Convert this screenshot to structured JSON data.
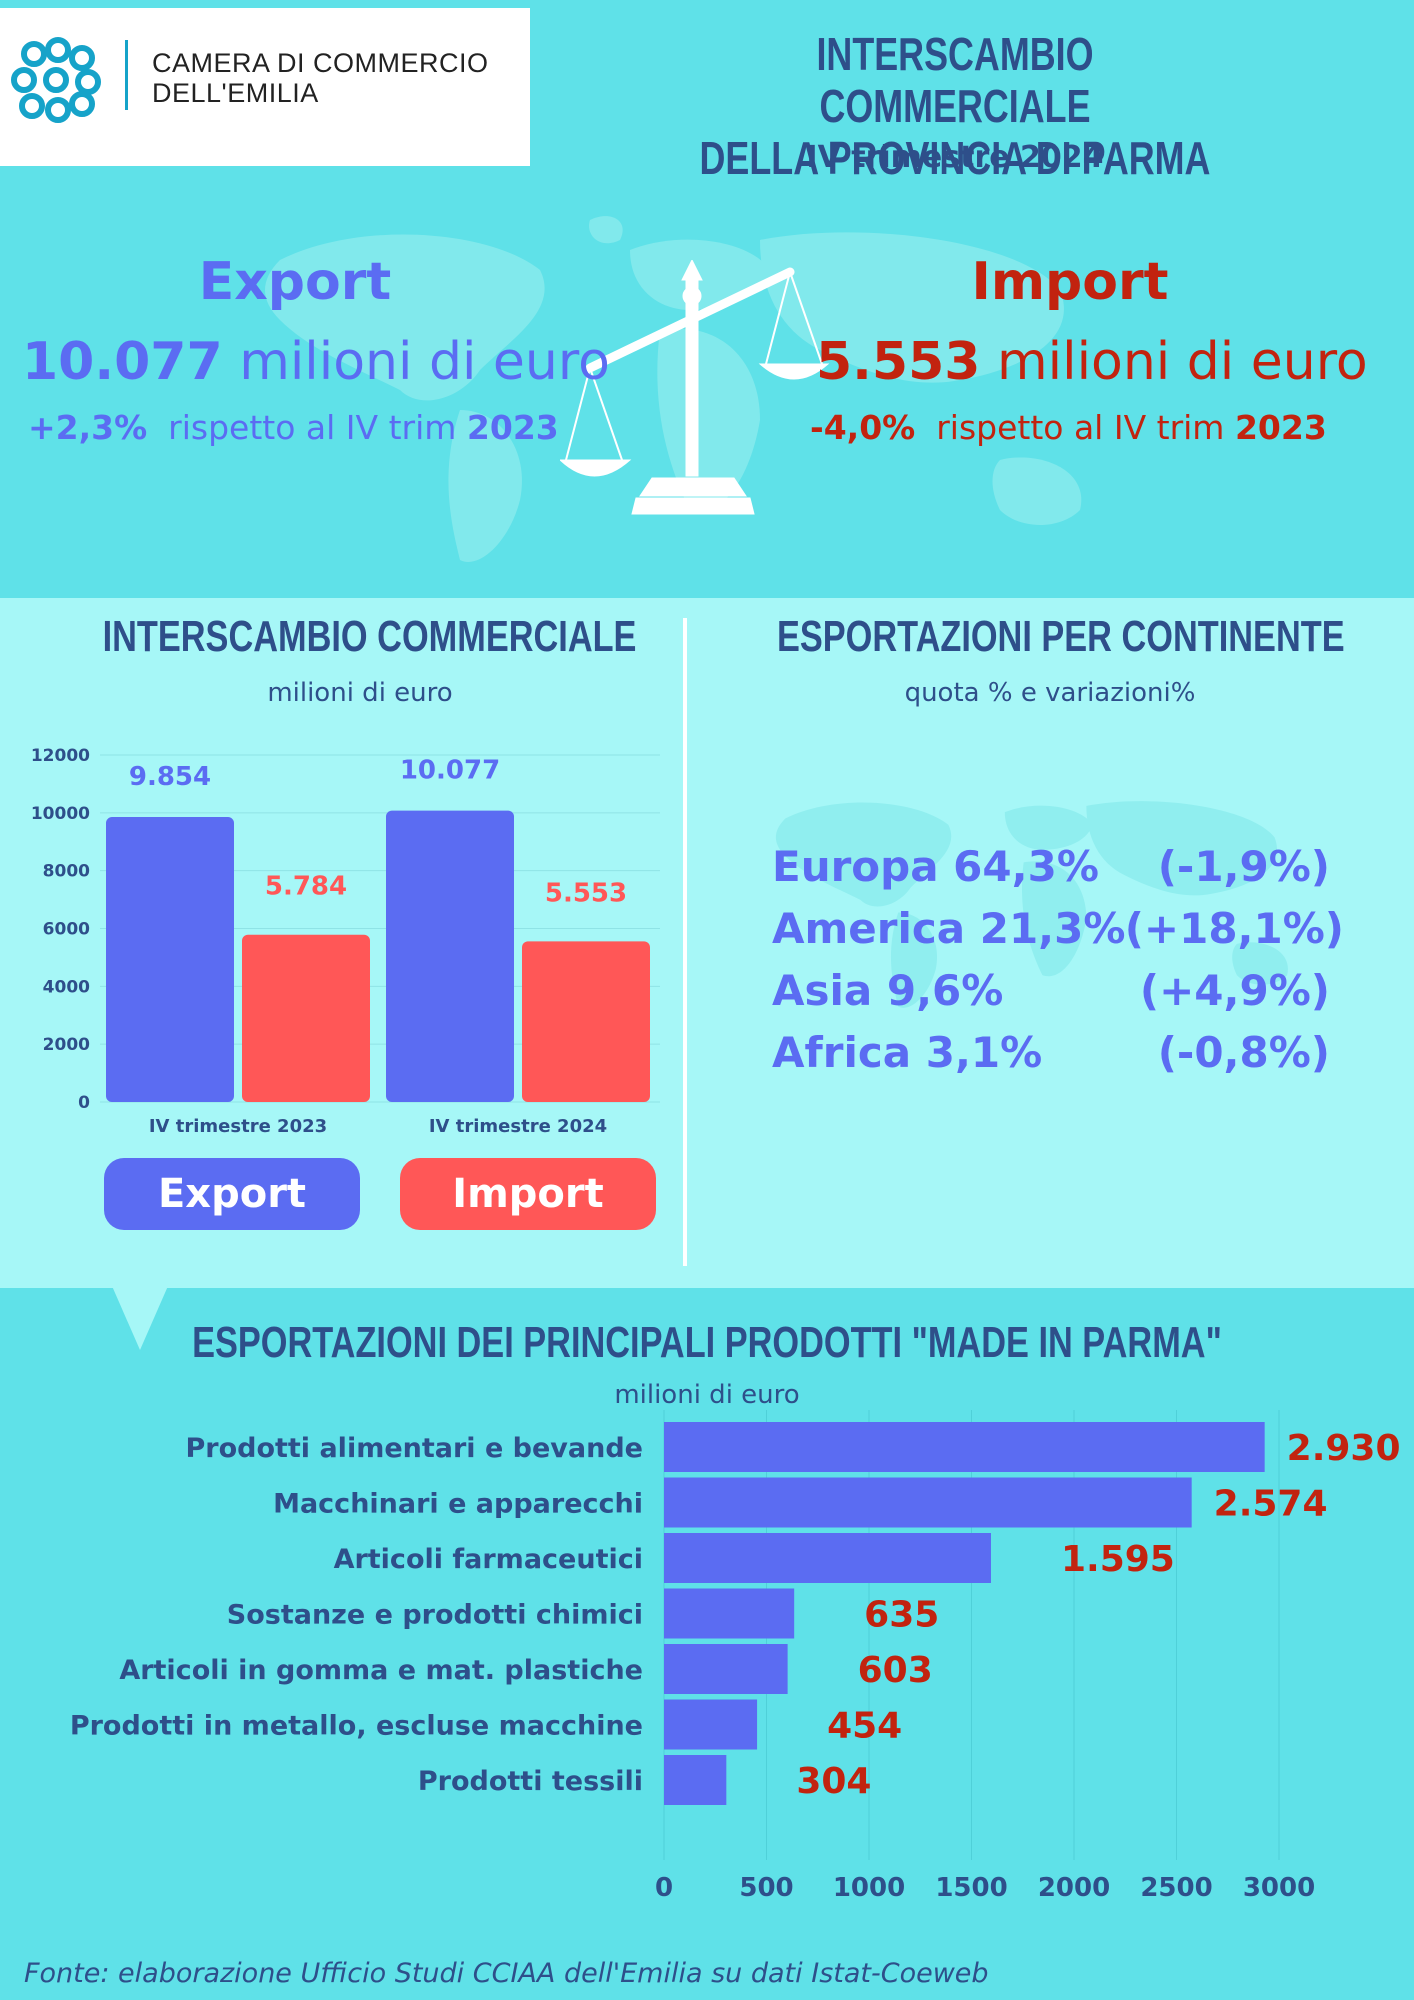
{
  "header": {
    "org_line1": "CAMERA DI COMMERCIO",
    "org_line2": "DELL'EMILIA",
    "title_line1": "INTERSCAMBIO COMMERCIALE",
    "title_line2": "DELLA PROVINCIA DI PARMA",
    "subtitle": "IV trimestre 2024"
  },
  "summary": {
    "export": {
      "label": "Export",
      "value": "10.077",
      "unit": "milioni di euro",
      "change": "+2,3%",
      "change_text": "rispetto al IV trim",
      "year": "2023"
    },
    "import": {
      "label": "Import",
      "value": "5.553",
      "unit": "milioni di euro",
      "change": "-4,0%",
      "change_text": "rispetto al IV trim",
      "year": "2023"
    }
  },
  "interscambio": {
    "title": "INTERSCAMBIO COMMERCIALE",
    "subtitle": "milioni di euro",
    "legend_export": "Export",
    "legend_import": "Import"
  },
  "continenti": {
    "title": "ESPORTAZIONI PER CONTINENTE",
    "subtitle": "quota %  e variazioni%",
    "rows": [
      {
        "label": "Europa 64,3%",
        "change": "(-1,9%)"
      },
      {
        "label": "America 21,3%",
        "change": "(+18,1%)"
      },
      {
        "label": "Asia 9,6%",
        "change": "(+4,9%)"
      },
      {
        "label": "Africa 3,1%",
        "change": "(-0,8%)"
      }
    ]
  },
  "prodotti": {
    "title": "ESPORTAZIONI DEI PRINCIPALI PRODOTTI \"MADE IN PARMA\"",
    "subtitle": "milioni di euro"
  },
  "source": "Fonte: elaborazione Ufficio Studi CCIAA dell'Emilia su dati Istat-Coeweb",
  "colors": {
    "export": "#5b6cf2",
    "import": "#ff5757",
    "accent_dark": "#c2230f",
    "title": "#2e4f8a"
  },
  "chart_data": [
    {
      "type": "bar",
      "categories": [
        "IV trimestre 2023",
        "IV trimestre 2024"
      ],
      "series": [
        {
          "name": "Export",
          "values": [
            9854,
            10077
          ],
          "labels": [
            "9.854",
            "10.077"
          ]
        },
        {
          "name": "Import",
          "values": [
            5784,
            5553
          ],
          "labels": [
            "5.784",
            "5.553"
          ]
        }
      ],
      "y_ticks": [
        0,
        2000,
        4000,
        6000,
        8000,
        10000,
        12000
      ],
      "ylim": [
        0,
        12000
      ],
      "title": "INTERSCAMBIO COMMERCIALE",
      "subtitle": "milioni di euro",
      "grid": true
    },
    {
      "type": "bar",
      "orientation": "horizontal",
      "categories": [
        "Prodotti alimentari e bevande",
        "Macchinari e apparecchi",
        "Articoli farmaceutici",
        "Sostanze e prodotti chimici",
        "Articoli in gomma e mat. plastiche",
        "Prodotti in metallo, escluse macchine",
        "Prodotti tessili"
      ],
      "values": [
        2930,
        2574,
        1595,
        635,
        603,
        454,
        304
      ],
      "labels": [
        "2.930",
        "2.574",
        "1.595",
        "635",
        "603",
        "454",
        "304"
      ],
      "x_ticks": [
        0,
        500,
        1000,
        1500,
        2000,
        2500,
        3000
      ],
      "xlim": [
        0,
        3000
      ],
      "title": "ESPORTAZIONI DEI PRINCIPALI PRODOTTI \"MADE IN PARMA\"",
      "subtitle": "milioni di euro",
      "grid": true
    }
  ]
}
